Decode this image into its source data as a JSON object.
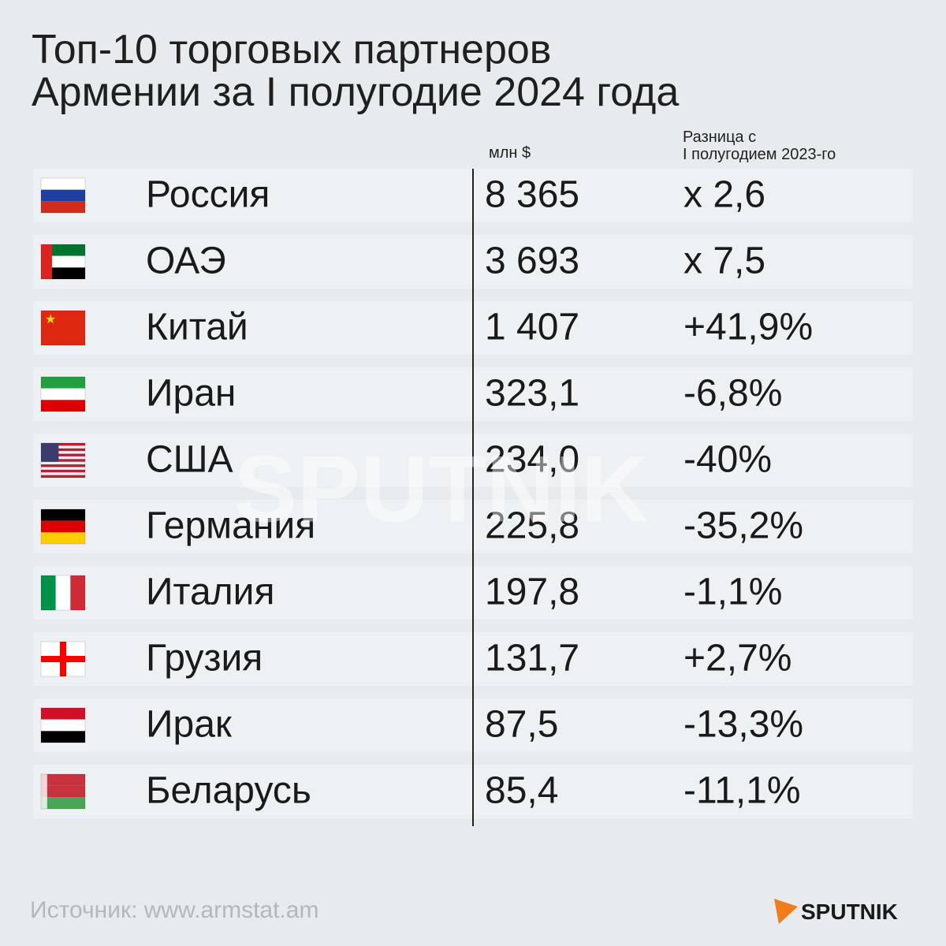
{
  "header": {
    "title_lines": [
      "Топ-10 торговых партнеров",
      "Армении за I полугодие 2024 года"
    ]
  },
  "table": {
    "columns": {
      "value": "млн $",
      "change": [
        "Разница с",
        "I полугодием 2023-го"
      ]
    },
    "rows": [
      [
        "Россия",
        "8 365",
        "x 2,6"
      ],
      [
        "ОАЭ",
        "3 693",
        "x 7,5"
      ],
      [
        "Китай",
        "1 407",
        "+41,9%"
      ],
      [
        "Иран",
        "323,1",
        "-6,8%"
      ],
      [
        "США",
        "234,0",
        "-40%"
      ],
      [
        "Германия",
        "225,8",
        "-35,2%"
      ],
      [
        "Италия",
        "197,8",
        "-1,1%"
      ],
      [
        "Грузия",
        "131,7",
        "+2,7%"
      ],
      [
        "Ирак",
        "87,5",
        "-13,3%"
      ],
      [
        "Беларусь",
        "85,4",
        "-11,1%"
      ]
    ]
  },
  "watermark": "SPUTNIK",
  "footer": {
    "source": "Источник: www.armstat.am",
    "logo": "SPUTNIK"
  }
}
